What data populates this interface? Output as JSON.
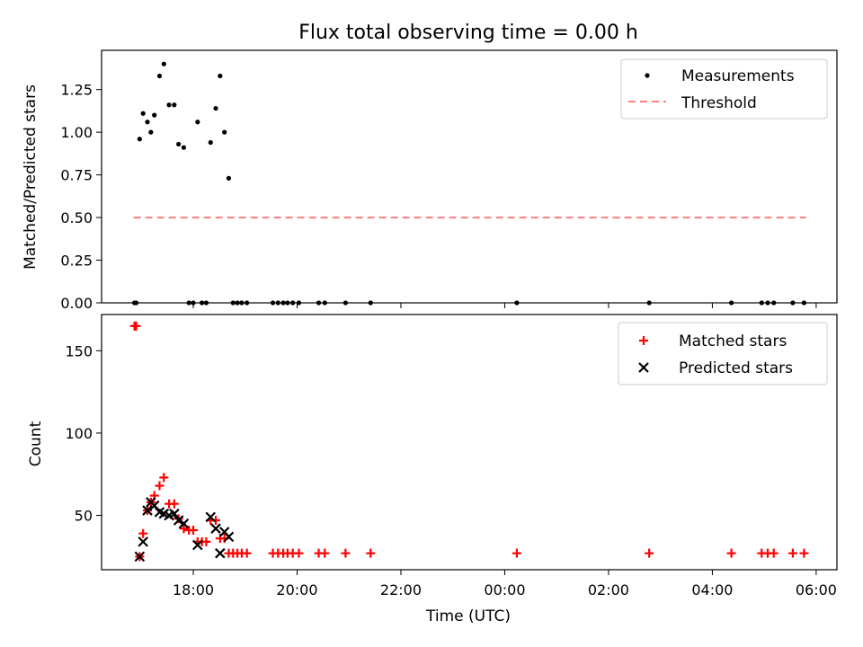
{
  "chart_data": [
    {
      "type": "scatter",
      "title": "Flux total observing time = 0.00 h",
      "xlabel": "",
      "ylabel": "Matched/Predicted stars",
      "xlim": [
        "16:14",
        "06:24"
      ],
      "ylim": [
        0,
        1.48
      ],
      "yticks": [
        "0.00",
        "0.25",
        "0.50",
        "0.75",
        "1.00",
        "1.25"
      ],
      "x_tick_labels_shown": false,
      "legend": {
        "location": "top-right",
        "entries": [
          "Measurements",
          "Threshold"
        ]
      },
      "threshold": {
        "name": "Threshold",
        "value": 0.5,
        "x_range": [
          "16:51",
          "05:48"
        ],
        "color": "#ff7f7f",
        "style": "dashed"
      },
      "series": [
        {
          "name": "Measurements",
          "marker": "dot",
          "color": "#000000",
          "points": [
            [
              "16:52",
              0.0
            ],
            [
              "16:54",
              0.0
            ],
            [
              "16:58",
              0.96
            ],
            [
              "17:02",
              1.11
            ],
            [
              "17:07",
              1.06
            ],
            [
              "17:11",
              1.0
            ],
            [
              "17:15",
              1.1
            ],
            [
              "17:21",
              1.33
            ],
            [
              "17:26",
              1.4
            ],
            [
              "17:32",
              1.16
            ],
            [
              "17:38",
              1.16
            ],
            [
              "17:43",
              0.93
            ],
            [
              "17:49",
              0.91
            ],
            [
              "17:55",
              0.0
            ],
            [
              "18:00",
              0.0
            ],
            [
              "18:05",
              1.06
            ],
            [
              "18:10",
              0.0
            ],
            [
              "18:15",
              0.0
            ],
            [
              "18:20",
              0.94
            ],
            [
              "18:26",
              1.14
            ],
            [
              "18:31",
              1.33
            ],
            [
              "18:36",
              1.0
            ],
            [
              "18:41",
              0.73
            ],
            [
              "18:46",
              0.0
            ],
            [
              "18:51",
              0.0
            ],
            [
              "18:56",
              0.0
            ],
            [
              "19:02",
              0.0
            ],
            [
              "19:32",
              0.0
            ],
            [
              "19:38",
              0.0
            ],
            [
              "19:44",
              0.0
            ],
            [
              "19:49",
              0.0
            ],
            [
              "19:55",
              0.0
            ],
            [
              "20:02",
              0.0
            ],
            [
              "20:25",
              0.0
            ],
            [
              "20:32",
              0.0
            ],
            [
              "20:56",
              0.0
            ],
            [
              "21:25",
              0.0
            ],
            [
              "00:14",
              0.0
            ],
            [
              "02:47",
              0.0
            ],
            [
              "04:22",
              0.0
            ],
            [
              "04:57",
              0.0
            ],
            [
              "05:04",
              0.0
            ],
            [
              "05:11",
              0.0
            ],
            [
              "05:33",
              0.0
            ],
            [
              "05:46",
              0.0
            ]
          ]
        }
      ]
    },
    {
      "type": "scatter",
      "title": "",
      "xlabel": "Time (UTC)",
      "ylabel": "Count",
      "xlim": [
        "16:14",
        "06:24"
      ],
      "ylim": [
        17,
        172
      ],
      "xticks": [
        "18:00",
        "20:00",
        "22:00",
        "00:00",
        "02:00",
        "04:00",
        "06:00"
      ],
      "yticks": [
        "50",
        "100",
        "150"
      ],
      "legend": {
        "location": "top-right",
        "entries": [
          "Matched stars",
          "Predicted stars"
        ]
      },
      "series": [
        {
          "name": "Matched stars",
          "marker": "plus",
          "color": "#ff0000",
          "points": [
            [
              "16:52",
              165
            ],
            [
              "16:54",
              165
            ],
            [
              "16:58",
              25
            ],
            [
              "17:02",
              39
            ],
            [
              "17:07",
              53
            ],
            [
              "17:11",
              58
            ],
            [
              "17:15",
              62
            ],
            [
              "17:21",
              68
            ],
            [
              "17:26",
              73
            ],
            [
              "17:32",
              57
            ],
            [
              "17:38",
              57
            ],
            [
              "17:43",
              48
            ],
            [
              "17:49",
              42
            ],
            [
              "17:55",
              41
            ],
            [
              "18:00",
              41
            ],
            [
              "18:05",
              34
            ],
            [
              "18:10",
              34
            ],
            [
              "18:15",
              34
            ],
            [
              "18:20",
              47
            ],
            [
              "18:26",
              47
            ],
            [
              "18:31",
              36
            ],
            [
              "18:36",
              36
            ],
            [
              "18:41",
              27
            ],
            [
              "18:46",
              27
            ],
            [
              "18:51",
              27
            ],
            [
              "18:56",
              27
            ],
            [
              "19:02",
              27
            ],
            [
              "19:32",
              27
            ],
            [
              "19:38",
              27
            ],
            [
              "19:44",
              27
            ],
            [
              "19:49",
              27
            ],
            [
              "19:55",
              27
            ],
            [
              "20:02",
              27
            ],
            [
              "20:25",
              27
            ],
            [
              "20:32",
              27
            ],
            [
              "20:56",
              27
            ],
            [
              "21:25",
              27
            ],
            [
              "00:14",
              27
            ],
            [
              "02:47",
              27
            ],
            [
              "04:22",
              27
            ],
            [
              "04:57",
              27
            ],
            [
              "05:04",
              27
            ],
            [
              "05:11",
              27
            ],
            [
              "05:33",
              27
            ],
            [
              "05:46",
              27
            ]
          ]
        },
        {
          "name": "Predicted stars",
          "marker": "x",
          "color": "#000000",
          "points": [
            [
              "16:58",
              25
            ],
            [
              "17:02",
              34
            ],
            [
              "17:07",
              53
            ],
            [
              "17:11",
              58
            ],
            [
              "17:15",
              56
            ],
            [
              "17:21",
              52
            ],
            [
              "17:26",
              51
            ],
            [
              "17:32",
              50
            ],
            [
              "17:38",
              51
            ],
            [
              "17:43",
              47
            ],
            [
              "17:49",
              45
            ],
            [
              "18:05",
              32
            ],
            [
              "18:20",
              49
            ],
            [
              "18:26",
              42
            ],
            [
              "18:31",
              27
            ],
            [
              "18:36",
              40
            ],
            [
              "18:41",
              37
            ]
          ]
        }
      ]
    }
  ]
}
